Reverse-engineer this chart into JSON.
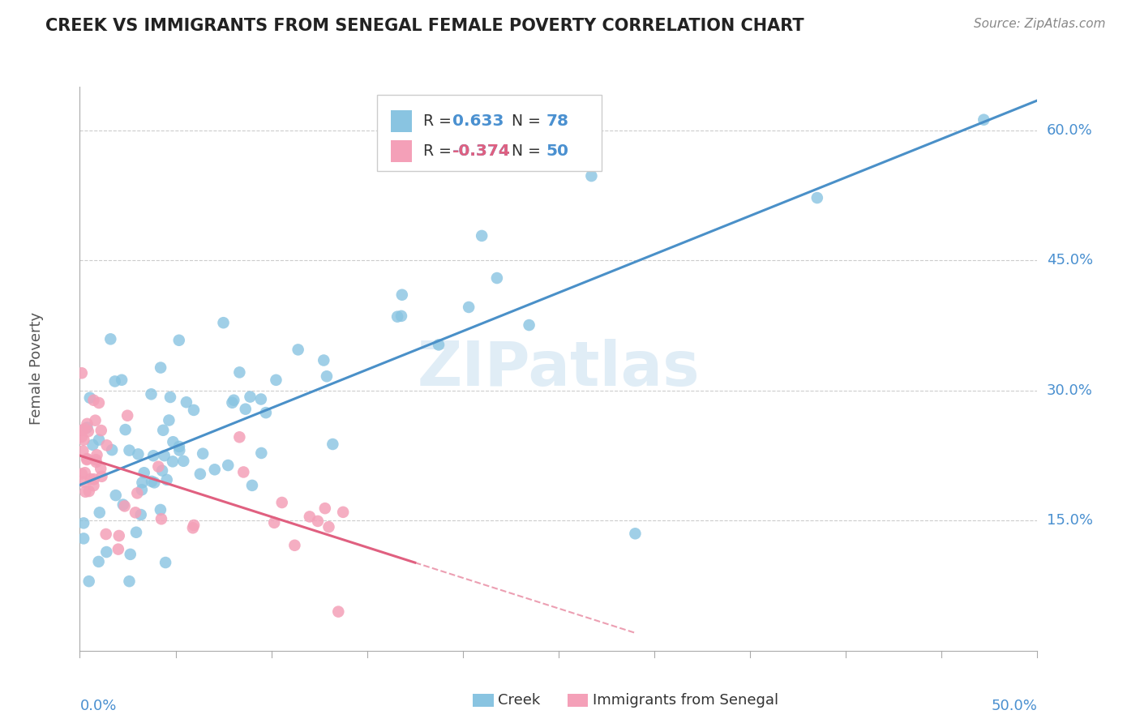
{
  "title": "CREEK VS IMMIGRANTS FROM SENEGAL FEMALE POVERTY CORRELATION CHART",
  "source": "Source: ZipAtlas.com",
  "ylabel": "Female Poverty",
  "xlim": [
    0.0,
    0.5
  ],
  "ylim": [
    0.0,
    0.65
  ],
  "ytick_vals": [
    0.15,
    0.3,
    0.45,
    0.6
  ],
  "ytick_labels": [
    "15.0%",
    "30.0%",
    "45.0%",
    "60.0%"
  ],
  "creek_color": "#89c4e1",
  "senegal_color": "#f4a0b8",
  "trendline_creek_color": "#4a90c8",
  "trendline_senegal_color": "#e06080",
  "watermark": "ZIPatlas",
  "legend1_label": "R =  0.633   N = 78",
  "legend2_label": "R = -0.374   N = 50",
  "legend1_r": "0.633",
  "legend1_n": "78",
  "legend2_r": "-0.374",
  "legend2_n": "50"
}
